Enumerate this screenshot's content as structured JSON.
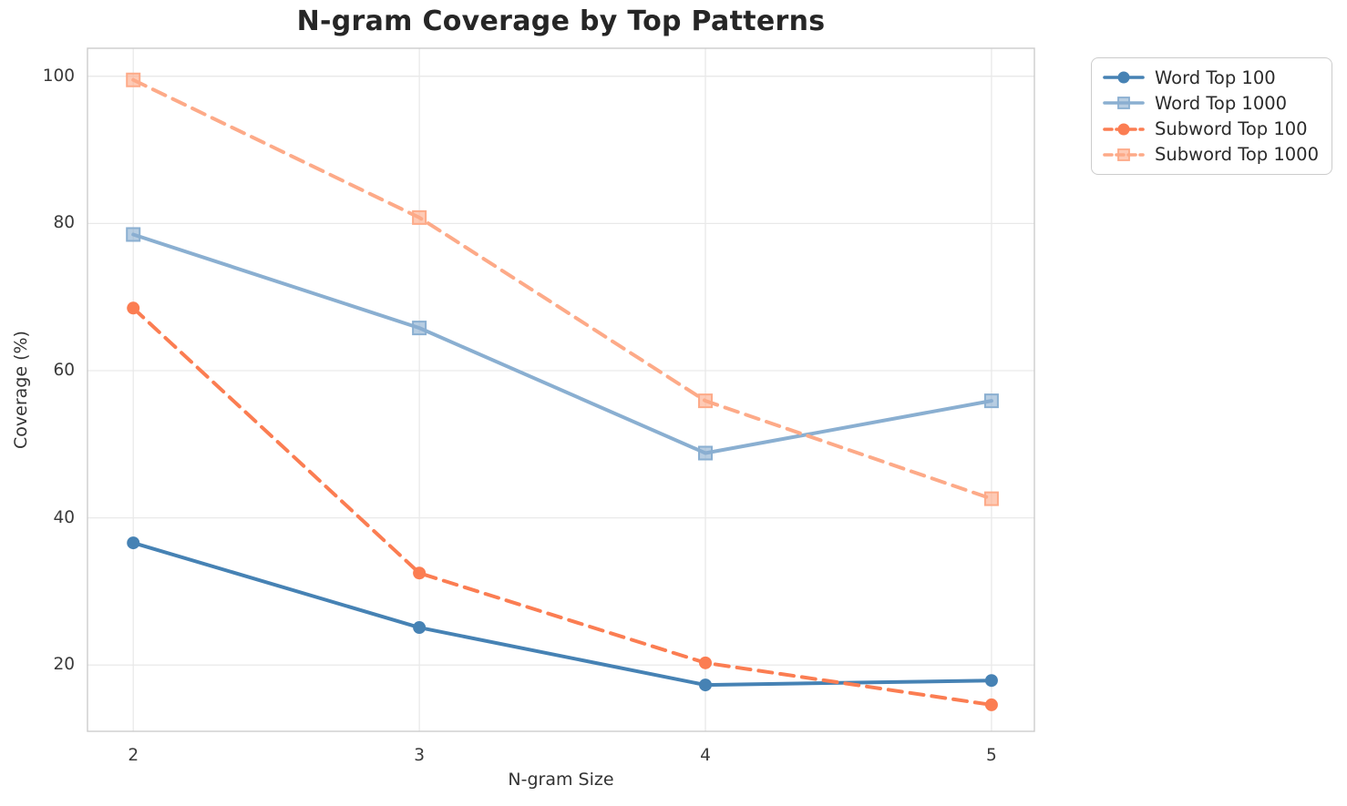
{
  "chart_data": {
    "type": "line",
    "title": "N-gram Coverage by Top Patterns",
    "xlabel": "N-gram Size",
    "ylabel": "Coverage (%)",
    "x": [
      2,
      3,
      4,
      5
    ],
    "x_tick_labels": [
      "2",
      "3",
      "4",
      "5"
    ],
    "y_ticks": [
      20,
      40,
      60,
      80,
      100
    ],
    "y_tick_labels": [
      "20",
      "40",
      "60",
      "80",
      "100"
    ],
    "xlim": [
      1.84,
      5.15
    ],
    "ylim": [
      11,
      103.8
    ],
    "grid": true,
    "legend_position": "outside-top-right",
    "series": [
      {
        "name": "Word Top 100",
        "color": "#4682B4",
        "line_style": "solid",
        "marker": "circle",
        "values": [
          36.6,
          25.1,
          17.3,
          17.9
        ]
      },
      {
        "name": "Word Top 1000",
        "color": "#8AAFD1",
        "line_style": "solid",
        "marker": "square",
        "values": [
          78.5,
          65.8,
          48.8,
          55.9
        ]
      },
      {
        "name": "Subword Top 100",
        "color": "#FB7D52",
        "line_style": "dashed",
        "marker": "circle",
        "values": [
          68.5,
          32.5,
          20.3,
          14.6
        ]
      },
      {
        "name": "Subword Top 1000",
        "color": "#FDAA88",
        "line_style": "dashed",
        "marker": "square",
        "values": [
          99.5,
          80.8,
          55.9,
          42.6
        ]
      }
    ],
    "colors": {
      "grid": "#E9E9E9",
      "spine": "#CCCCCC",
      "title": "#262626",
      "tick": "#3A3A3A",
      "axis_label": "#333333",
      "legend_border": "#CCCCCC",
      "legend_text": "#2B2B2B",
      "background": "#FFFFFF"
    }
  }
}
